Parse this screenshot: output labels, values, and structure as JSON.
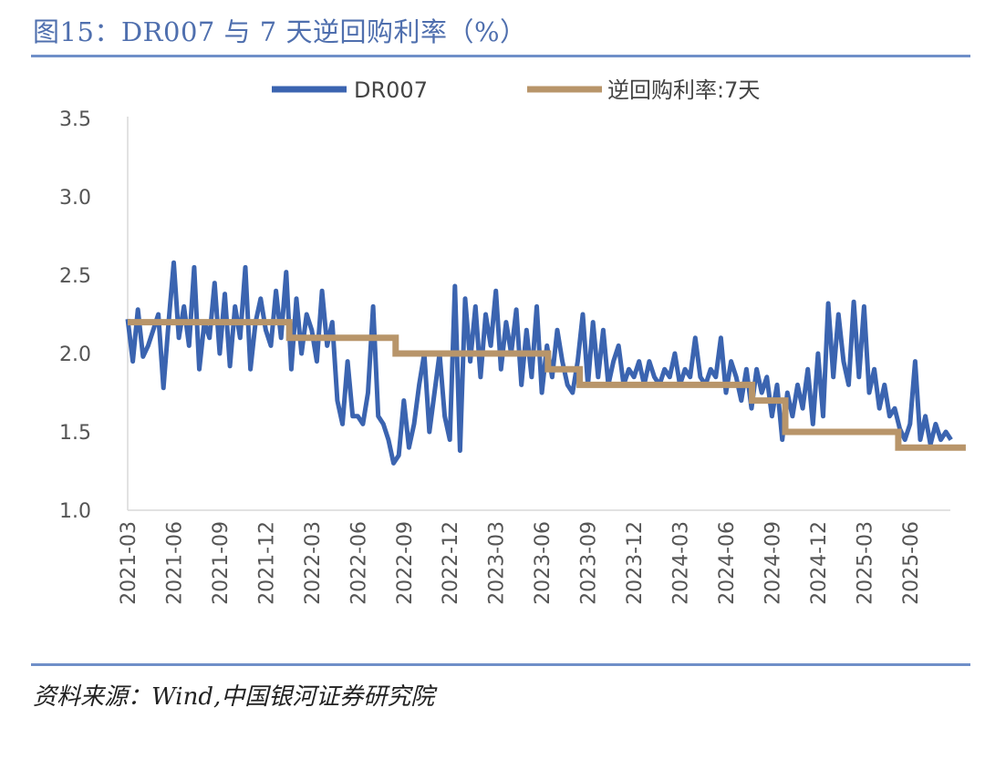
{
  "header": {
    "title": "图15：DR007 与 7 天逆回购利率（%）"
  },
  "footer": {
    "source": "资料来源：Wind,中国银河证券研究院"
  },
  "colors": {
    "dr007": "#3b64b0",
    "repo": "#b8956a",
    "title": "#4f6fae",
    "rule": "#6f8fc8"
  },
  "chart_data": {
    "type": "line",
    "title": "DR007 与 7 天逆回购利率（%）",
    "xlabel": "",
    "ylabel": "",
    "ylim": [
      1.0,
      3.5
    ],
    "yticks": [
      "1.0",
      "1.5",
      "2.0",
      "2.5",
      "3.0",
      "3.5"
    ],
    "xticks": [
      "2021-03",
      "2021-06",
      "2021-09",
      "2021-12",
      "2022-03",
      "2022-06",
      "2022-09",
      "2022-12",
      "2023-03",
      "2023-06",
      "2023-09",
      "2023-12",
      "2024-03",
      "2024-06",
      "2024-09",
      "2024-12",
      "2025-03",
      "2025-06"
    ],
    "x_end": "2025-09-20",
    "grid": false,
    "legend_position": "top",
    "series": [
      {
        "name": "DR007",
        "start": "2021-03",
        "points_per_month": 3,
        "values": [
          2.22,
          1.95,
          2.28,
          1.98,
          2.05,
          2.15,
          2.25,
          1.78,
          2.2,
          2.58,
          2.1,
          2.3,
          2.05,
          2.55,
          1.9,
          2.2,
          2.1,
          2.45,
          2.0,
          2.38,
          1.92,
          2.3,
          2.1,
          2.55,
          1.9,
          2.2,
          2.35,
          2.15,
          2.05,
          2.4,
          2.1,
          2.52,
          1.9,
          2.35,
          2.0,
          2.25,
          2.15,
          1.95,
          2.4,
          2.05,
          2.2,
          1.7,
          1.55,
          1.95,
          1.6,
          1.6,
          1.55,
          1.75,
          2.3,
          1.6,
          1.55,
          1.45,
          1.3,
          1.35,
          1.7,
          1.4,
          1.55,
          1.8,
          2.0,
          1.5,
          1.75,
          2.0,
          1.6,
          1.45,
          2.43,
          1.38,
          2.35,
          1.95,
          2.3,
          1.85,
          2.25,
          2.05,
          2.4,
          1.9,
          2.2,
          2.0,
          2.28,
          1.8,
          2.15,
          1.85,
          2.3,
          1.75,
          2.05,
          1.85,
          2.15,
          1.95,
          1.8,
          1.75,
          1.95,
          2.25,
          1.8,
          2.2,
          1.85,
          2.15,
          1.8,
          1.95,
          2.05,
          1.8,
          1.9,
          1.85,
          1.95,
          1.8,
          1.95,
          1.85,
          1.8,
          1.9,
          1.85,
          2.0,
          1.8,
          1.9,
          1.85,
          2.1,
          1.85,
          1.8,
          1.9,
          1.85,
          2.1,
          1.75,
          1.95,
          1.85,
          1.7,
          1.9,
          1.65,
          1.9,
          1.75,
          1.85,
          1.6,
          1.8,
          1.45,
          1.75,
          1.6,
          1.8,
          1.65,
          1.9,
          1.55,
          2.0,
          1.6,
          2.32,
          1.85,
          2.25,
          1.95,
          1.8,
          2.33,
          1.85,
          2.3,
          1.75,
          1.9,
          1.65,
          1.8,
          1.6,
          1.65,
          1.52,
          1.45,
          1.55,
          1.95,
          1.45,
          1.6,
          1.42,
          1.55,
          1.45,
          1.5,
          1.45
        ]
      },
      {
        "name": "逆回购利率:7天",
        "type": "step",
        "steps": [
          {
            "from": "2021-03-01",
            "value": 2.2
          },
          {
            "from": "2022-01-17",
            "value": 2.1
          },
          {
            "from": "2022-08-15",
            "value": 2.0
          },
          {
            "from": "2023-06-13",
            "value": 1.9
          },
          {
            "from": "2023-08-15",
            "value": 1.8
          },
          {
            "from": "2024-07-22",
            "value": 1.7
          },
          {
            "from": "2024-09-27",
            "value": 1.5
          },
          {
            "from": "2025-05-08",
            "value": 1.4
          }
        ]
      }
    ]
  }
}
